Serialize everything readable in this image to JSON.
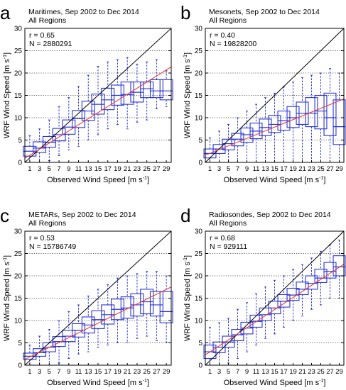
{
  "figure": {
    "axis_label_x": "Observed Wind Speed [m s",
    "axis_label_y": "WRF Wind Speed [m s",
    "unit_superscript": "-1",
    "unit_close": "]"
  },
  "colors": {
    "box": "#2b36d6",
    "regression": "#e3413f",
    "identity": "#000000",
    "grid": "#666666"
  },
  "chart_data": [
    {
      "type": "box",
      "panel_letter": "a",
      "title": "Maritimes, Sep 2002 to Dec 2014",
      "subtitle": "All Regions",
      "stats": [
        "r = 0.65",
        "N = 2880291"
      ],
      "xlabel": "Observed Wind Speed [m s-1]",
      "ylabel": "WRF Wind Speed [m s-1]",
      "xlim": [
        0,
        30
      ],
      "ylim": [
        0,
        30
      ],
      "x_ticks": [
        1,
        3,
        5,
        7,
        9,
        11,
        13,
        15,
        17,
        19,
        21,
        23,
        25,
        27,
        29
      ],
      "y_ticks": [
        0,
        5,
        10,
        15,
        20,
        25,
        30
      ],
      "grid": "horizontal dotted",
      "identity_line": [
        [
          0,
          0
        ],
        [
          30,
          30
        ]
      ],
      "regression_line": [
        [
          0,
          0.9
        ],
        [
          30,
          21.4
        ]
      ],
      "x": [
        1,
        3,
        5,
        7,
        9,
        11,
        13,
        15,
        17,
        19,
        21,
        23,
        25,
        27,
        29
      ],
      "whisker_low": [
        0.0,
        0.0,
        0.4,
        1.5,
        2.8,
        3.6,
        5.0,
        6.2,
        7.5,
        8.5,
        7.5,
        9.0,
        9.5,
        12.0,
        12.5
      ],
      "q1": [
        1.4,
        2.2,
        3.4,
        4.8,
        6.3,
        7.8,
        9.4,
        10.8,
        11.8,
        12.8,
        13.0,
        13.5,
        14.5,
        14.5,
        14.0
      ],
      "median": [
        2.5,
        3.2,
        4.5,
        6.2,
        7.9,
        9.8,
        11.5,
        13.0,
        14.0,
        15.0,
        15.2,
        15.7,
        16.5,
        16.0,
        16.0
      ],
      "q3": [
        3.6,
        4.6,
        5.8,
        7.6,
        9.5,
        11.6,
        13.7,
        15.3,
        16.6,
        17.3,
        18.0,
        18.0,
        18.0,
        18.5,
        18.5
      ],
      "whisker_high": [
        6.0,
        7.5,
        9.5,
        12.5,
        14.5,
        17.0,
        19.5,
        21.5,
        22.5,
        23.0,
        23.5,
        22.0,
        22.5,
        23.0,
        20.5
      ]
    },
    {
      "type": "box",
      "panel_letter": "b",
      "title": "Mesonets, Sep 2002 to Dec 2014",
      "subtitle": "All Regions",
      "stats": [
        "r = 0.40",
        "N = 19828200"
      ],
      "xlabel": "Observed Wind Speed [m s-1]",
      "ylabel": "WRF Wind Speed [m s-1]",
      "xlim": [
        0,
        30
      ],
      "ylim": [
        0,
        30
      ],
      "x_ticks": [
        1,
        3,
        5,
        7,
        9,
        11,
        13,
        15,
        17,
        19,
        21,
        23,
        25,
        27,
        29
      ],
      "y_ticks": [
        0,
        5,
        10,
        15,
        20,
        25,
        30
      ],
      "grid": "horizontal dotted",
      "identity_line": [
        [
          0,
          0
        ],
        [
          30,
          30
        ]
      ],
      "regression_line": [
        [
          0,
          1.6
        ],
        [
          30,
          14.2
        ]
      ],
      "x": [
        1,
        3,
        5,
        7,
        9,
        11,
        13,
        15,
        17,
        19,
        21,
        23,
        25,
        27,
        29
      ],
      "whisker_low": [
        0.0,
        0.0,
        0.0,
        0.0,
        0.0,
        0.0,
        0.0,
        0.0,
        0.0,
        0.0,
        0.0,
        0.0,
        0.0,
        0.0,
        0.0
      ],
      "q1": [
        1.0,
        2.0,
        2.8,
        3.7,
        4.5,
        5.3,
        6.0,
        6.7,
        7.2,
        7.8,
        8.5,
        8.0,
        7.5,
        6.0,
        4.0
      ],
      "median": [
        2.0,
        3.0,
        4.2,
        5.2,
        6.2,
        7.0,
        7.8,
        8.5,
        9.3,
        10.0,
        11.0,
        11.0,
        11.5,
        10.0,
        8.0
      ],
      "q3": [
        3.0,
        4.0,
        5.2,
        6.5,
        7.7,
        8.8,
        9.7,
        10.5,
        11.5,
        12.5,
        13.5,
        14.5,
        15.0,
        15.5,
        14.0
      ],
      "whisker_high": [
        5.5,
        7.0,
        8.5,
        10.0,
        11.5,
        13.0,
        14.5,
        15.5,
        17.0,
        18.0,
        19.0,
        19.5,
        20.0,
        21.0,
        20.0
      ]
    },
    {
      "type": "box",
      "panel_letter": "c",
      "title": "METARs, Sep 2002 to Dec 2014",
      "subtitle": "All Regions",
      "stats": [
        "r = 0.53",
        "N = 15786749"
      ],
      "xlabel": "Observed Wind Speed [m s-1]",
      "ylabel": "WRF Wind Speed [m s-1]",
      "xlim": [
        0,
        30
      ],
      "ylim": [
        0,
        30
      ],
      "x_ticks": [
        1,
        3,
        5,
        7,
        9,
        11,
        13,
        15,
        17,
        19,
        21,
        23,
        25,
        27,
        29
      ],
      "y_ticks": [
        0,
        5,
        10,
        15,
        20,
        25,
        30
      ],
      "grid": "horizontal dotted",
      "identity_line": [
        [
          0,
          0
        ],
        [
          30,
          30
        ]
      ],
      "regression_line": [
        [
          0,
          1.3
        ],
        [
          30,
          17.5
        ]
      ],
      "x": [
        1,
        3,
        5,
        7,
        9,
        11,
        13,
        15,
        17,
        19,
        21,
        23,
        25,
        27,
        29
      ],
      "whisker_low": [
        0.0,
        0.0,
        0.0,
        0.5,
        1.5,
        2.5,
        3.0,
        4.0,
        4.5,
        5.0,
        5.0,
        6.0,
        6.5,
        5.5,
        5.0
      ],
      "q1": [
        1.3,
        2.0,
        3.0,
        4.2,
        5.3,
        6.3,
        7.2,
        8.2,
        9.2,
        10.2,
        10.5,
        11.0,
        11.5,
        11.0,
        9.5
      ],
      "median": [
        2.0,
        2.8,
        4.0,
        5.3,
        6.5,
        7.8,
        9.0,
        10.2,
        11.3,
        12.5,
        12.8,
        13.5,
        14.2,
        13.5,
        12.0
      ],
      "q3": [
        2.7,
        3.7,
        5.0,
        6.4,
        7.8,
        9.3,
        10.8,
        12.2,
        13.5,
        14.8,
        15.3,
        16.0,
        17.0,
        16.5,
        16.5
      ],
      "whisker_high": [
        4.5,
        6.5,
        8.0,
        10.0,
        12.0,
        13.5,
        15.5,
        17.0,
        18.0,
        19.5,
        20.0,
        20.5,
        21.0,
        21.0,
        20.0
      ]
    },
    {
      "type": "box",
      "panel_letter": "d",
      "title": "Radiosondes, Sep 2002 to Dec 2014",
      "subtitle": "All Regions",
      "stats": [
        "r = 0.68",
        "N = 929111"
      ],
      "xlabel": "Observed Wind Speed [m s-1]",
      "ylabel": "WRF Wind Speed [m s-1]",
      "xlim": [
        0,
        30
      ],
      "ylim": [
        0,
        30
      ],
      "x_ticks": [
        1,
        3,
        5,
        7,
        9,
        11,
        13,
        15,
        17,
        19,
        21,
        23,
        25,
        27,
        29
      ],
      "y_ticks": [
        0,
        5,
        10,
        15,
        20,
        25,
        30
      ],
      "grid": "horizontal dotted",
      "identity_line": [
        [
          0,
          0
        ],
        [
          30,
          30
        ]
      ],
      "regression_line": [
        [
          0,
          2.3
        ],
        [
          30,
          22.6
        ]
      ],
      "x": [
        1,
        3,
        5,
        7,
        9,
        11,
        13,
        15,
        17,
        19,
        21,
        23,
        25,
        27,
        29
      ],
      "whisker_low": [
        0.0,
        0.0,
        0.5,
        1.5,
        3.0,
        4.5,
        6.0,
        7.0,
        8.5,
        10.0,
        11.0,
        12.5,
        13.5,
        15.0,
        15.0
      ],
      "q1": [
        1.5,
        2.8,
        4.0,
        5.5,
        7.0,
        8.5,
        10.0,
        11.5,
        13.0,
        14.5,
        15.8,
        17.0,
        18.5,
        19.5,
        20.0
      ],
      "median": [
        3.0,
        4.0,
        5.2,
        6.8,
        8.3,
        9.8,
        11.3,
        12.8,
        14.3,
        15.7,
        17.0,
        18.3,
        19.5,
        21.0,
        22.0
      ],
      "q3": [
        4.5,
        5.2,
        6.5,
        8.0,
        9.6,
        11.2,
        12.8,
        14.3,
        15.8,
        17.2,
        18.6,
        20.0,
        21.5,
        23.0,
        24.5
      ],
      "whisker_high": [
        8.5,
        9.5,
        10.5,
        12.5,
        14.0,
        16.0,
        17.5,
        19.0,
        20.0,
        21.5,
        22.5,
        24.0,
        25.5,
        27.0,
        28.0
      ]
    }
  ]
}
